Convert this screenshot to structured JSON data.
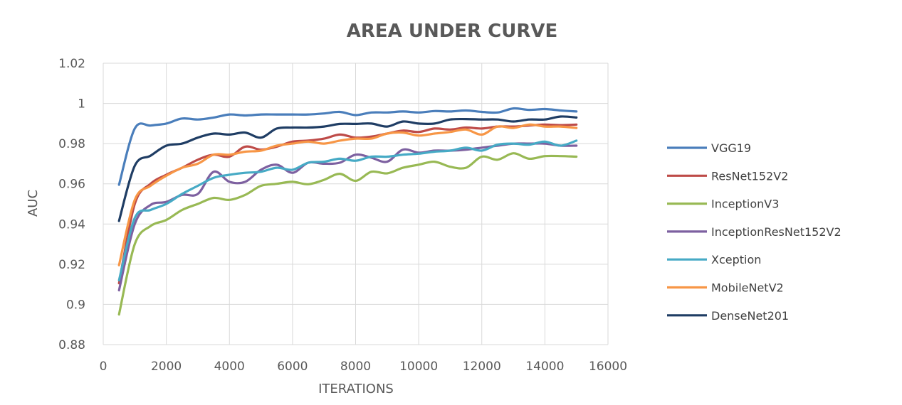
{
  "chart_data": {
    "type": "line",
    "title": "AREA UNDER CURVE",
    "xlabel": "ITERATIONS",
    "ylabel": "AUC",
    "xlim": [
      0,
      16000
    ],
    "ylim": [
      0.88,
      1.02
    ],
    "xticks": [
      0,
      2000,
      4000,
      6000,
      8000,
      10000,
      12000,
      14000,
      16000
    ],
    "yticks": [
      0.88,
      0.9,
      0.92,
      0.94,
      0.96,
      0.98,
      1,
      1.02
    ],
    "xtick_labels": [
      "0",
      "2000",
      "4000",
      "6000",
      "8000",
      "10000",
      "12000",
      "14000",
      "16000"
    ],
    "ytick_labels": [
      "0.88",
      "0.9",
      "0.92",
      "0.94",
      "0.96",
      "0.98",
      "1",
      "1.02"
    ],
    "grid": "vertical and horizontal",
    "legend": "right",
    "x": [
      500,
      1000,
      1500,
      2000,
      2500,
      3000,
      3500,
      4000,
      4500,
      5000,
      5500,
      6000,
      6500,
      7000,
      7500,
      8000,
      8500,
      9000,
      9500,
      10000,
      10500,
      11000,
      11500,
      12000,
      12500,
      13000,
      13500,
      14000,
      14500,
      15000
    ],
    "series": [
      {
        "name": "VGG19",
        "color": "#4a7ebb",
        "values": [
          0.9595,
          0.9875,
          0.989,
          0.99,
          0.9925,
          0.992,
          0.993,
          0.9945,
          0.994,
          0.9945,
          0.9945,
          0.9945,
          0.9945,
          0.995,
          0.9958,
          0.9942,
          0.9955,
          0.9955,
          0.996,
          0.9955,
          0.9962,
          0.996,
          0.9965,
          0.9958,
          0.9955,
          0.9975,
          0.9968,
          0.9972,
          0.9965,
          0.996
        ]
      },
      {
        "name": "ResNet152V2",
        "color": "#be4b48",
        "values": [
          0.9105,
          0.95,
          0.96,
          0.9645,
          0.968,
          0.972,
          0.9745,
          0.9735,
          0.9785,
          0.977,
          0.9785,
          0.981,
          0.9815,
          0.9825,
          0.9845,
          0.983,
          0.9835,
          0.985,
          0.9865,
          0.9858,
          0.9875,
          0.987,
          0.988,
          0.9875,
          0.9885,
          0.9885,
          0.989,
          0.9895,
          0.9892,
          0.9895
        ]
      },
      {
        "name": "InceptionV3",
        "color": "#98b954",
        "values": [
          0.895,
          0.93,
          0.939,
          0.942,
          0.947,
          0.95,
          0.953,
          0.952,
          0.9545,
          0.959,
          0.96,
          0.961,
          0.9598,
          0.962,
          0.965,
          0.9615,
          0.966,
          0.9652,
          0.968,
          0.9695,
          0.971,
          0.9685,
          0.968,
          0.9735,
          0.972,
          0.9752,
          0.9725,
          0.9738,
          0.9738,
          0.9735
        ]
      },
      {
        "name": "InceptionResNet152V2",
        "color": "#7d60a0",
        "values": [
          0.907,
          0.94,
          0.9495,
          0.951,
          0.9545,
          0.955,
          0.966,
          0.961,
          0.961,
          0.967,
          0.9695,
          0.9655,
          0.9705,
          0.97,
          0.9705,
          0.9745,
          0.973,
          0.971,
          0.977,
          0.9755,
          0.9765,
          0.9765,
          0.977,
          0.978,
          0.979,
          0.98,
          0.98,
          0.98,
          0.979,
          0.979
        ]
      },
      {
        "name": "Xception",
        "color": "#46aac5",
        "values": [
          0.912,
          0.943,
          0.947,
          0.95,
          0.955,
          0.959,
          0.963,
          0.9645,
          0.9655,
          0.966,
          0.968,
          0.967,
          0.9705,
          0.971,
          0.9725,
          0.9715,
          0.9735,
          0.9735,
          0.9745,
          0.975,
          0.976,
          0.9765,
          0.978,
          0.9765,
          0.9795,
          0.98,
          0.9795,
          0.981,
          0.979,
          0.9815
        ]
      },
      {
        "name": "MobileNetV2",
        "color": "#f79646",
        "values": [
          0.9195,
          0.952,
          0.959,
          0.964,
          0.968,
          0.97,
          0.9745,
          0.9745,
          0.976,
          0.9765,
          0.979,
          0.98,
          0.981,
          0.98,
          0.9815,
          0.9825,
          0.9825,
          0.985,
          0.9855,
          0.984,
          0.985,
          0.9858,
          0.987,
          0.9845,
          0.9885,
          0.9878,
          0.9895,
          0.9885,
          0.9885,
          0.9878
        ]
      },
      {
        "name": "DenseNet201",
        "color": "#1f3d64",
        "values": [
          0.9415,
          0.969,
          0.974,
          0.979,
          0.98,
          0.983,
          0.985,
          0.9845,
          0.9855,
          0.983,
          0.9875,
          0.988,
          0.988,
          0.9885,
          0.9898,
          0.9898,
          0.99,
          0.9885,
          0.991,
          0.99,
          0.99,
          0.992,
          0.9922,
          0.992,
          0.992,
          0.991,
          0.992,
          0.992,
          0.9935,
          0.993
        ]
      }
    ]
  }
}
